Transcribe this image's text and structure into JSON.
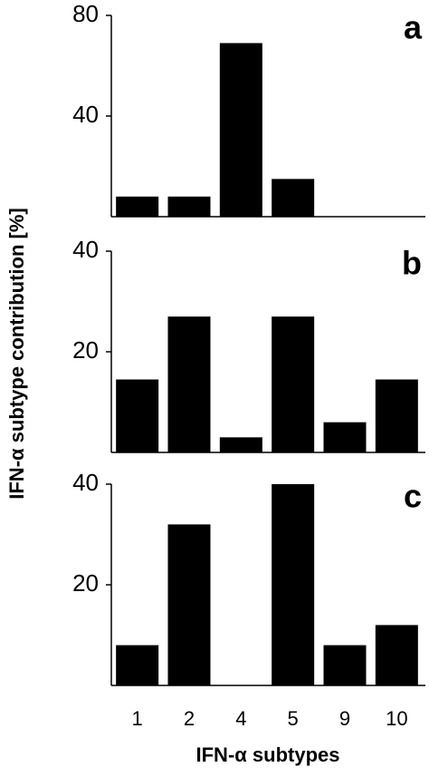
{
  "chart_data": [
    {
      "type": "bar",
      "panel_label": "a",
      "values": [
        8,
        8,
        69,
        15,
        0,
        0
      ],
      "color": "#000000",
      "ylim": [
        0,
        80
      ],
      "yticks": [
        40,
        80
      ]
    },
    {
      "type": "bar",
      "panel_label": "b",
      "ylabel": "IFN-α subtype contribution [%]",
      "values": [
        14.5,
        27,
        3,
        27,
        6,
        14.5
      ],
      "color": "#000000",
      "ylim": [
        0,
        40
      ],
      "yticks": [
        20,
        40
      ]
    },
    {
      "type": "bar",
      "panel_label": "c",
      "xlabel": "IFN-α subtypes",
      "categories": [
        "1",
        "2",
        "4",
        "5",
        "9",
        "10"
      ],
      "values": [
        8,
        32,
        0,
        40,
        8,
        12
      ],
      "color": "#000000",
      "ylim": [
        0,
        40
      ],
      "yticks": [
        20,
        40
      ]
    }
  ]
}
